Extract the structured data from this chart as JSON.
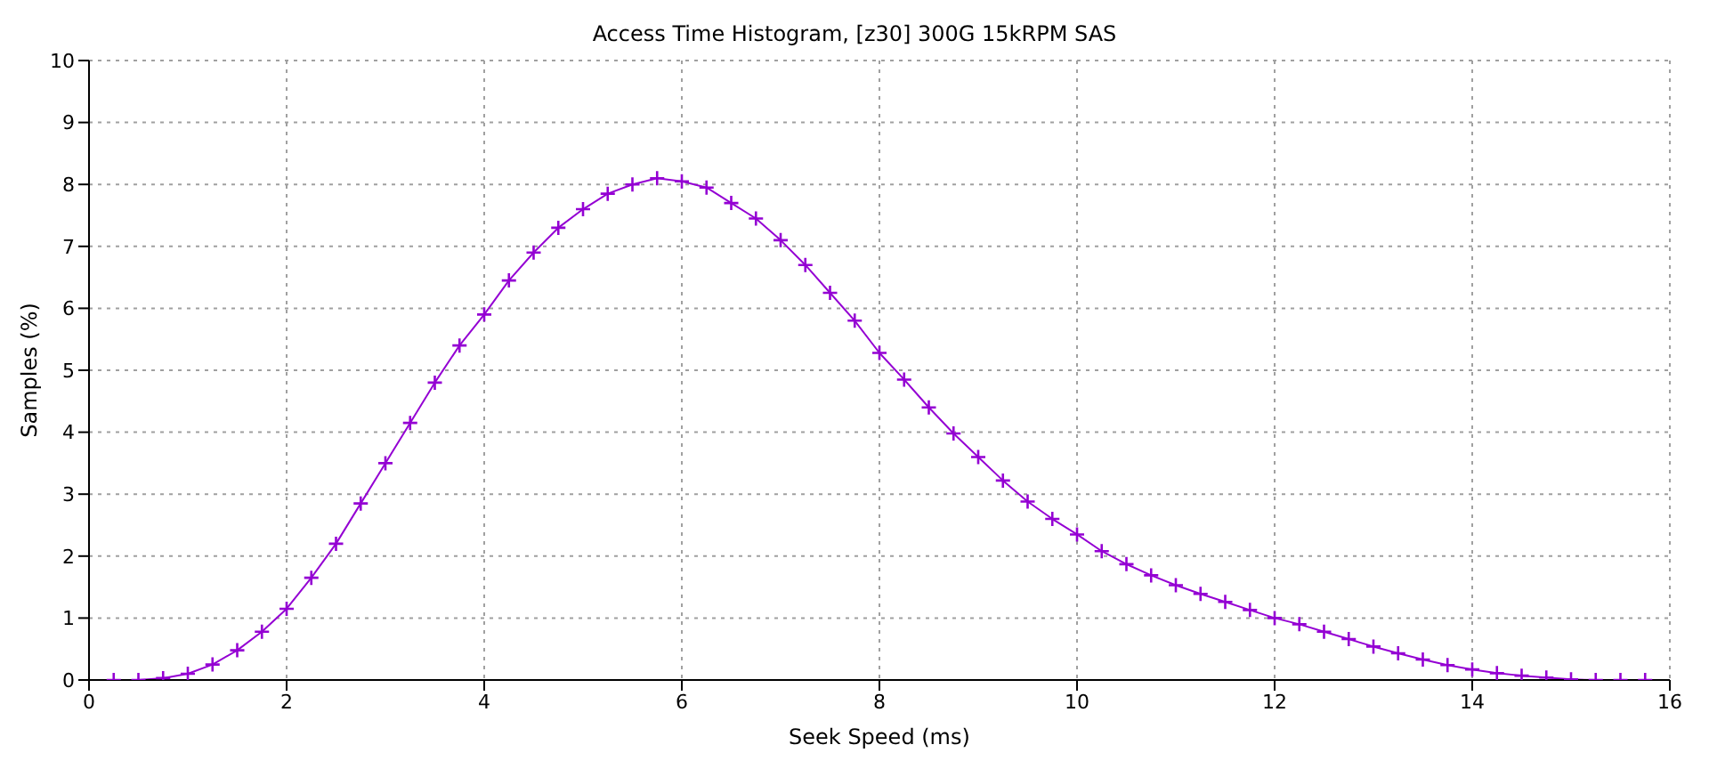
{
  "chart_data": {
    "type": "line",
    "title": "Access Time Histogram, [z30] 300G 15kRPM SAS",
    "xlabel": "Seek Speed (ms)",
    "ylabel": "Samples (%)",
    "x": [
      0.25,
      0.5,
      0.75,
      1.0,
      1.25,
      1.5,
      1.75,
      2.0,
      2.25,
      2.5,
      2.75,
      3.0,
      3.25,
      3.5,
      3.75,
      4.0,
      4.25,
      4.5,
      4.75,
      5.0,
      5.25,
      5.5,
      5.75,
      6.0,
      6.25,
      6.5,
      6.75,
      7.0,
      7.25,
      7.5,
      7.75,
      8.0,
      8.25,
      8.5,
      8.75,
      9.0,
      9.25,
      9.5,
      9.75,
      10.0,
      10.25,
      10.5,
      10.75,
      11.0,
      11.25,
      11.5,
      11.75,
      12.0,
      12.25,
      12.5,
      12.75,
      13.0,
      13.25,
      13.5,
      13.75,
      14.0,
      14.25,
      14.5,
      14.75,
      15.0,
      15.25,
      15.5,
      15.75
    ],
    "series": [
      {
        "color": "#9400d3",
        "values": [
          0,
          0,
          0.03,
          0.1,
          0.25,
          0.48,
          0.78,
          1.15,
          1.65,
          2.2,
          2.85,
          3.5,
          4.15,
          4.8,
          5.4,
          5.9,
          6.45,
          6.9,
          7.3,
          7.6,
          7.85,
          8.0,
          8.1,
          8.05,
          7.95,
          7.7,
          7.45,
          7.1,
          6.7,
          6.25,
          5.8,
          5.28,
          4.85,
          4.4,
          3.98,
          3.6,
          3.22,
          2.88,
          2.6,
          2.35,
          2.08,
          1.87,
          1.69,
          1.53,
          1.39,
          1.26,
          1.13,
          1.0,
          0.9,
          0.78,
          0.66,
          0.54,
          0.43,
          0.33,
          0.24,
          0.17,
          0.11,
          0.07,
          0.04,
          0.01,
          0,
          0,
          0
        ]
      }
    ],
    "xlim": [
      0,
      16
    ],
    "xticks": [
      0,
      2,
      4,
      6,
      8,
      10,
      12,
      14,
      16
    ],
    "ylim": [
      0,
      10
    ],
    "yticks": [
      0,
      1,
      2,
      3,
      4,
      5,
      6,
      7,
      8,
      9,
      10
    ],
    "grid": true,
    "marker": "cross",
    "line_style": "solid"
  }
}
